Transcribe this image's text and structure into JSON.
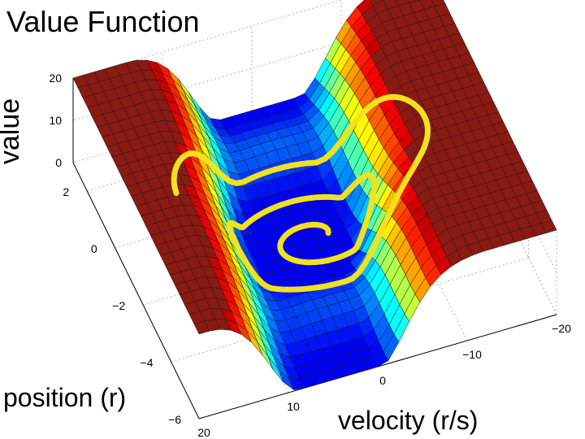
{
  "chart_data": {
    "type": "surface",
    "title": "Value Function",
    "xlabel": "velocity (r/s)",
    "ylabel": "position (r)",
    "zlabel": "value",
    "x_ticks": [
      "20",
      "10",
      "0",
      "−10",
      "−20"
    ],
    "y_ticks": [
      "2",
      "0",
      "−2",
      "−4",
      "−6"
    ],
    "z_ticks": [
      "20",
      "10",
      "0"
    ],
    "xlim": [
      -20,
      20
    ],
    "ylim": [
      -6,
      3
    ],
    "zlim": [
      0,
      20
    ],
    "colormap": "jet",
    "grid": true,
    "trajectory": {
      "description_color": "#f5e31a",
      "shape": "spiral",
      "center": [
        0,
        -1.5
      ],
      "turns": 2.5
    },
    "colors": {
      "plateau": "#8b1a12",
      "basin": "#1e5ae6",
      "trajectory": "#f2e21e",
      "grid": "#b4b4b4"
    }
  }
}
